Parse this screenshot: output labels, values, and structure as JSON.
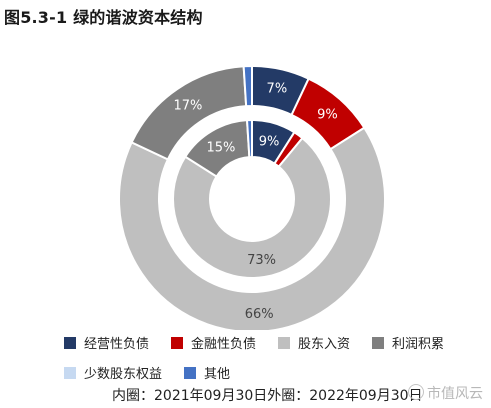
{
  "title": "图5.3-1 绿的谐波资本结构",
  "chart_data": {
    "type": "pie",
    "style": "nested-donut",
    "categories": [
      "经营性负债",
      "金融性负债",
      "股东入资",
      "利润积累",
      "少数股东权益",
      "其他"
    ],
    "colors": [
      "#233a66",
      "#c00000",
      "#bfbfbf",
      "#7f7f7f",
      "#c6d9f1",
      "#4472c4"
    ],
    "series": [
      {
        "ring": "inner",
        "period": "2021年09月30日",
        "values": [
          9,
          2,
          73,
          15,
          0,
          1
        ],
        "labels": [
          "9%",
          "",
          "73%",
          "15%",
          "",
          ""
        ]
      },
      {
        "ring": "outer",
        "period": "2022年09月30日",
        "values": [
          7,
          9,
          66,
          17,
          0,
          1
        ],
        "labels": [
          "7%",
          "9%",
          "66%",
          "17%",
          "",
          ""
        ]
      }
    ],
    "legend_position": "bottom"
  },
  "note": "内圈：2021年09月30日外圈：2022年09月30日",
  "watermark": "市值风云"
}
